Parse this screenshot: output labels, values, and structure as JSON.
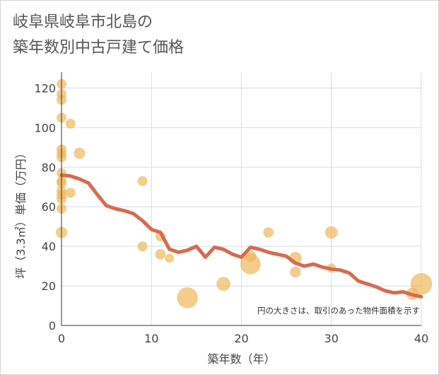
{
  "chart_data": {
    "type": "scatter",
    "title_lines": [
      "岐阜県岐阜市北島の",
      "築年数別中古戸建て価格"
    ],
    "xlabel": "築年数（年）",
    "ylabel": "坪（3.3㎡）単価（万円）",
    "xlim": [
      0,
      40
    ],
    "ylim": [
      0,
      128
    ],
    "xticks": [
      0,
      10,
      20,
      30,
      40
    ],
    "yticks": [
      0,
      20,
      40,
      60,
      80,
      100,
      120
    ],
    "grid": true,
    "note": "円の大きさは、取引のあった物件面積を示す",
    "colors": {
      "bubble": "#f0b75a",
      "line": "#d96a4e",
      "grid": "#d5dde6",
      "axis": "#333333"
    },
    "scatter": [
      {
        "x": 0,
        "y": 122,
        "size": 1
      },
      {
        "x": 0,
        "y": 117,
        "size": 1
      },
      {
        "x": 0,
        "y": 114,
        "size": 1
      },
      {
        "x": 0,
        "y": 105,
        "size": 1
      },
      {
        "x": 0,
        "y": 89,
        "size": 1
      },
      {
        "x": 0,
        "y": 87,
        "size": 1
      },
      {
        "x": 0,
        "y": 85,
        "size": 1
      },
      {
        "x": 0,
        "y": 77,
        "size": 1
      },
      {
        "x": 0,
        "y": 73,
        "size": 1
      },
      {
        "x": 0,
        "y": 72,
        "size": 1
      },
      {
        "x": 0,
        "y": 68,
        "size": 1
      },
      {
        "x": 0,
        "y": 66,
        "size": 1
      },
      {
        "x": 0,
        "y": 64,
        "size": 1
      },
      {
        "x": 0,
        "y": 59,
        "size": 1
      },
      {
        "x": 0,
        "y": 47,
        "size": 1.3
      },
      {
        "x": 1,
        "y": 102,
        "size": 1
      },
      {
        "x": 1,
        "y": 67,
        "size": 1
      },
      {
        "x": 2,
        "y": 87,
        "size": 1.3
      },
      {
        "x": 9,
        "y": 73,
        "size": 1
      },
      {
        "x": 9,
        "y": 40,
        "size": 1
      },
      {
        "x": 11,
        "y": 45,
        "size": 1
      },
      {
        "x": 11,
        "y": 36,
        "size": 1.1
      },
      {
        "x": 12,
        "y": 34,
        "size": 0.8
      },
      {
        "x": 14,
        "y": 14,
        "size": 4.5
      },
      {
        "x": 18,
        "y": 21,
        "size": 2
      },
      {
        "x": 21,
        "y": 35,
        "size": 1.4
      },
      {
        "x": 21,
        "y": 31,
        "size": 4.2
      },
      {
        "x": 23,
        "y": 47,
        "size": 1.1
      },
      {
        "x": 26,
        "y": 34,
        "size": 1.6
      },
      {
        "x": 26,
        "y": 27,
        "size": 1.2
      },
      {
        "x": 30,
        "y": 47,
        "size": 1.6
      },
      {
        "x": 30,
        "y": 29,
        "size": 0.9
      },
      {
        "x": 39,
        "y": 16,
        "size": 1.5
      },
      {
        "x": 40,
        "y": 21,
        "size": 4.8
      }
    ],
    "trend": {
      "x": [
        0,
        1,
        2,
        3,
        4,
        5,
        6,
        7,
        8,
        9,
        10,
        11,
        12,
        13,
        14,
        15,
        16,
        17,
        18,
        19,
        20,
        21,
        22,
        23,
        24,
        25,
        26,
        27,
        28,
        29,
        30,
        31,
        32,
        33,
        34,
        35,
        36,
        37,
        38,
        39,
        40
      ],
      "y": [
        76,
        75.5,
        74,
        72,
        66,
        60.5,
        59,
        58,
        56.5,
        53,
        48.5,
        47,
        38.5,
        37,
        38,
        40,
        34.5,
        39.5,
        38.5,
        36,
        34.5,
        39.5,
        38.5,
        37,
        36,
        35,
        31.5,
        30,
        31,
        29.5,
        28.5,
        28,
        26.5,
        22.5,
        21,
        19.5,
        17.5,
        16.5,
        17,
        15.5,
        14.5
      ]
    }
  }
}
